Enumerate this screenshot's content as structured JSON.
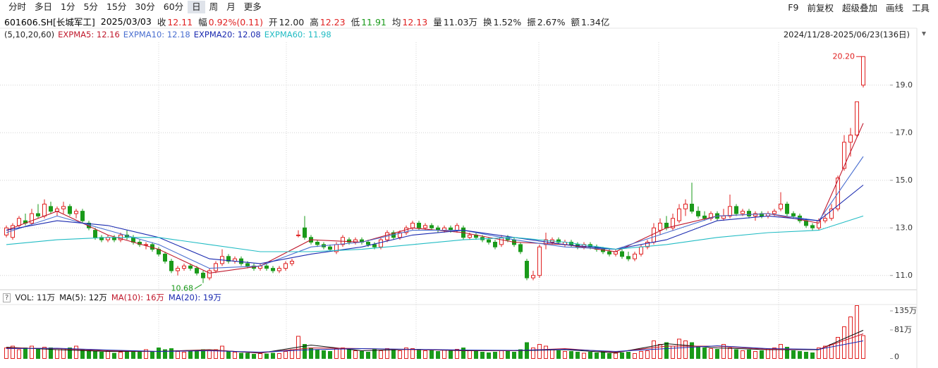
{
  "toolbar": {
    "tabs": [
      "分时",
      "多日",
      "1分",
      "5分",
      "15分",
      "30分",
      "60分",
      "日",
      "周",
      "月",
      "更多"
    ],
    "selected": 7,
    "tools": [
      "F9",
      "前复权",
      "超级叠加",
      "画线",
      "工具"
    ]
  },
  "info": {
    "code": "601606.SH[长城军工]",
    "date": "2025/03/03",
    "items": [
      {
        "label": "收",
        "value": "12.11",
        "color": "#e02020"
      },
      {
        "label": "幅",
        "value": "0.92%(0.11)",
        "color": "#e02020"
      },
      {
        "label": "开",
        "value": "12.00",
        "color": "#222222"
      },
      {
        "label": "高",
        "value": "12.23",
        "color": "#e02020"
      },
      {
        "label": "低",
        "value": "11.91",
        "color": "#1a9a1a"
      },
      {
        "label": "均",
        "value": "12.13",
        "color": "#e02020"
      },
      {
        "label": "量",
        "value": "11.03万",
        "color": "#222222"
      },
      {
        "label": "换",
        "value": "1.52%",
        "color": "#222222"
      },
      {
        "label": "振",
        "value": "2.67%",
        "color": "#222222"
      },
      {
        "label": "额",
        "value": "1.34亿",
        "color": "#222222"
      }
    ]
  },
  "chart_data": {
    "type": "candlestick",
    "params": "(5,10,20,60)",
    "range": "2024/11/28-2025/06/23(136日)",
    "up_color": "#e02020",
    "down_color": "#1a9a1a",
    "ylim": [
      10.4,
      20.8
    ],
    "yticks": [
      {
        "value": 11,
        "label": "11.0"
      },
      {
        "value": 13,
        "label": "13.0"
      },
      {
        "value": 15,
        "label": "15.0"
      },
      {
        "value": 17,
        "label": "17.0"
      },
      {
        "value": 19,
        "label": "19.0"
      }
    ],
    "grid": true,
    "annotations": {
      "max": "20.20",
      "min": "10.68"
    },
    "candles": [
      [
        12.7,
        13.1,
        12.6,
        13.0
      ],
      [
        12.6,
        13.2,
        12.5,
        13.1
      ],
      [
        13.1,
        13.5,
        13.0,
        13.4
      ],
      [
        13.3,
        13.6,
        13.1,
        13.2
      ],
      [
        13.2,
        13.8,
        13.1,
        13.6
      ],
      [
        13.6,
        14.0,
        13.4,
        13.5
      ],
      [
        13.5,
        14.2,
        13.4,
        14.0
      ],
      [
        13.9,
        14.1,
        13.6,
        13.7
      ],
      [
        13.7,
        13.9,
        13.5,
        13.8
      ],
      [
        13.8,
        14.1,
        13.6,
        13.9
      ],
      [
        13.9,
        14.0,
        13.5,
        13.6
      ],
      [
        13.6,
        13.8,
        13.4,
        13.7
      ],
      [
        13.7,
        13.8,
        13.2,
        13.3
      ],
      [
        13.2,
        13.3,
        12.9,
        13.0
      ],
      [
        12.9,
        13.0,
        12.5,
        12.6
      ],
      [
        12.6,
        12.7,
        12.4,
        12.5
      ],
      [
        12.5,
        12.7,
        12.4,
        12.6
      ],
      [
        12.6,
        12.7,
        12.4,
        12.5
      ],
      [
        12.5,
        12.8,
        12.4,
        12.7
      ],
      [
        12.7,
        12.9,
        12.5,
        12.6
      ],
      [
        12.6,
        12.7,
        12.3,
        12.4
      ],
      [
        12.4,
        12.5,
        12.2,
        12.3
      ],
      [
        12.3,
        12.4,
        12.1,
        12.3
      ],
      [
        12.3,
        12.4,
        12.0,
        12.1
      ],
      [
        12.1,
        12.2,
        11.8,
        11.9
      ],
      [
        11.9,
        12.0,
        11.5,
        11.6
      ],
      [
        11.6,
        11.7,
        11.1,
        11.2
      ],
      [
        11.2,
        11.4,
        11.0,
        11.3
      ],
      [
        11.3,
        11.5,
        11.2,
        11.4
      ],
      [
        11.4,
        11.5,
        11.2,
        11.3
      ],
      [
        11.3,
        11.4,
        11.0,
        11.1
      ],
      [
        11.1,
        11.2,
        10.68,
        10.9
      ],
      [
        10.9,
        11.3,
        10.8,
        11.2
      ],
      [
        11.2,
        11.6,
        11.1,
        11.5
      ],
      [
        11.5,
        12.1,
        11.4,
        11.8
      ],
      [
        11.8,
        11.9,
        11.5,
        11.6
      ],
      [
        11.6,
        11.8,
        11.5,
        11.7
      ],
      [
        11.7,
        11.8,
        11.4,
        11.5
      ],
      [
        11.5,
        11.6,
        11.3,
        11.4
      ],
      [
        11.4,
        11.5,
        11.2,
        11.3
      ],
      [
        11.3,
        11.5,
        11.2,
        11.4
      ],
      [
        11.4,
        11.5,
        11.2,
        11.3
      ],
      [
        11.3,
        11.4,
        11.1,
        11.2
      ],
      [
        11.2,
        11.4,
        11.1,
        11.3
      ],
      [
        11.3,
        11.6,
        11.2,
        11.5
      ],
      [
        11.5,
        11.7,
        11.4,
        11.6
      ],
      [
        12.7,
        12.9,
        12.6,
        12.7
      ],
      [
        13.0,
        13.5,
        12.5,
        12.6
      ],
      [
        12.6,
        12.7,
        12.3,
        12.4
      ],
      [
        12.4,
        12.5,
        12.2,
        12.3
      ],
      [
        12.3,
        12.4,
        12.1,
        12.2
      ],
      [
        12.2,
        12.3,
        12.0,
        12.1
      ],
      [
        12.0,
        12.4,
        11.9,
        12.3
      ],
      [
        12.3,
        12.7,
        12.2,
        12.6
      ],
      [
        12.5,
        12.6,
        12.3,
        12.4
      ],
      [
        12.4,
        12.6,
        12.3,
        12.5
      ],
      [
        12.5,
        12.6,
        12.3,
        12.4
      ],
      [
        12.4,
        12.5,
        12.2,
        12.3
      ],
      [
        12.3,
        12.4,
        12.1,
        12.2
      ],
      [
        12.2,
        12.6,
        12.1,
        12.5
      ],
      [
        12.5,
        12.9,
        12.4,
        12.8
      ],
      [
        12.8,
        12.9,
        12.5,
        12.6
      ],
      [
        12.6,
        12.9,
        12.5,
        12.8
      ],
      [
        12.8,
        13.1,
        12.7,
        13.0
      ],
      [
        13.0,
        13.3,
        12.9,
        13.2
      ],
      [
        13.2,
        13.3,
        12.9,
        13.0
      ],
      [
        13.0,
        13.2,
        12.9,
        13.1
      ],
      [
        13.1,
        13.2,
        12.9,
        13.0
      ],
      [
        13.0,
        13.1,
        12.8,
        12.9
      ],
      [
        12.9,
        13.1,
        12.8,
        13.0
      ],
      [
        13.0,
        13.1,
        12.8,
        12.9
      ],
      [
        12.9,
        13.2,
        12.8,
        13.1
      ],
      [
        13.0,
        13.1,
        12.5,
        12.6
      ],
      [
        12.6,
        12.8,
        12.5,
        12.7
      ],
      [
        12.7,
        12.8,
        12.5,
        12.6
      ],
      [
        12.6,
        12.7,
        12.4,
        12.5
      ],
      [
        12.5,
        12.6,
        12.3,
        12.4
      ],
      [
        12.4,
        12.5,
        12.1,
        12.2
      ],
      [
        12.3,
        12.7,
        12.2,
        12.6
      ],
      [
        12.6,
        12.7,
        12.4,
        12.5
      ],
      [
        12.5,
        12.6,
        12.2,
        12.3
      ],
      [
        12.3,
        12.4,
        11.9,
        12.0
      ],
      [
        11.6,
        11.7,
        10.8,
        10.9
      ],
      [
        10.9,
        11.2,
        10.8,
        11.0
      ],
      [
        11.0,
        12.3,
        10.9,
        12.2
      ],
      [
        12.3,
        12.8,
        12.1,
        12.5
      ],
      [
        12.4,
        12.6,
        12.3,
        12.5
      ],
      [
        12.5,
        12.6,
        12.3,
        12.4
      ],
      [
        12.3,
        12.5,
        12.2,
        12.4
      ],
      [
        12.4,
        12.5,
        12.2,
        12.3
      ],
      [
        12.3,
        12.4,
        12.1,
        12.2
      ],
      [
        12.2,
        12.4,
        12.1,
        12.3
      ],
      [
        12.3,
        12.4,
        12.1,
        12.2
      ],
      [
        12.2,
        12.3,
        12.0,
        12.1
      ],
      [
        12.1,
        12.2,
        11.9,
        12.0
      ],
      [
        12.0,
        12.1,
        11.8,
        11.9
      ],
      [
        11.9,
        12.1,
        11.8,
        12.0
      ],
      [
        12.0,
        12.1,
        11.7,
        11.8
      ],
      [
        11.8,
        12.0,
        11.6,
        11.7
      ],
      [
        11.7,
        12.0,
        11.6,
        11.9
      ],
      [
        11.9,
        12.3,
        11.8,
        12.2
      ],
      [
        12.2,
        12.5,
        12.1,
        12.4
      ],
      [
        12.4,
        13.2,
        12.3,
        13.0
      ],
      [
        12.9,
        13.4,
        12.7,
        13.2
      ],
      [
        13.2,
        13.5,
        12.9,
        13.0
      ],
      [
        13.0,
        13.6,
        12.9,
        13.4
      ],
      [
        13.3,
        14.0,
        13.2,
        13.8
      ],
      [
        13.8,
        14.2,
        13.5,
        14.0
      ],
      [
        14.0,
        14.9,
        13.6,
        13.7
      ],
      [
        13.7,
        13.9,
        13.4,
        13.5
      ],
      [
        13.5,
        13.7,
        13.3,
        13.4
      ],
      [
        13.4,
        13.7,
        13.3,
        13.6
      ],
      [
        13.6,
        13.7,
        13.3,
        13.4
      ],
      [
        13.4,
        13.8,
        13.3,
        13.5
      ],
      [
        13.5,
        14.4,
        13.4,
        13.9
      ],
      [
        13.9,
        14.0,
        13.5,
        13.6
      ],
      [
        13.6,
        13.8,
        13.5,
        13.7
      ],
      [
        13.7,
        13.8,
        13.4,
        13.5
      ],
      [
        13.5,
        13.7,
        13.3,
        13.6
      ],
      [
        13.6,
        13.7,
        13.4,
        13.5
      ],
      [
        13.5,
        13.7,
        13.4,
        13.6
      ],
      [
        13.6,
        13.8,
        13.5,
        13.7
      ],
      [
        13.8,
        14.5,
        13.7,
        14.0
      ],
      [
        14.0,
        14.1,
        13.5,
        13.6
      ],
      [
        13.6,
        13.7,
        13.4,
        13.5
      ],
      [
        13.5,
        13.6,
        13.2,
        13.3
      ],
      [
        13.3,
        13.4,
        13.0,
        13.1
      ],
      [
        13.1,
        13.2,
        12.9,
        13.0
      ],
      [
        13.0,
        13.4,
        12.9,
        13.3
      ],
      [
        13.3,
        13.6,
        13.2,
        13.4
      ],
      [
        13.4,
        14.0,
        13.3,
        13.8
      ],
      [
        13.8,
        15.2,
        13.7,
        15.1
      ],
      [
        15.5,
        16.9,
        15.4,
        16.6
      ],
      [
        16.6,
        17.2,
        16.0,
        16.9
      ],
      [
        16.9,
        18.3,
        16.8,
        18.3
      ],
      [
        19.0,
        20.2,
        18.9,
        20.2
      ]
    ],
    "series": [
      {
        "name": "EXPMA5: 12.16",
        "color": "#c0182c",
        "x": [
          0,
          8,
          16,
          24,
          32,
          40,
          48,
          56,
          64,
          72,
          80,
          88,
          96,
          104,
          112,
          120,
          128,
          135
        ],
        "values": [
          12.9,
          13.7,
          12.7,
          12.1,
          11.1,
          11.4,
          12.5,
          12.4,
          13.0,
          12.8,
          12.4,
          12.3,
          12.0,
          13.0,
          13.5,
          13.6,
          13.2,
          17.4
        ]
      },
      {
        "name": "EXPMA10: 12.18",
        "color": "#4a6fd0",
        "x": [
          0,
          8,
          16,
          24,
          32,
          40,
          48,
          56,
          64,
          72,
          80,
          88,
          96,
          104,
          112,
          120,
          128,
          135
        ],
        "values": [
          12.8,
          13.5,
          12.9,
          12.3,
          11.3,
          11.4,
          12.2,
          12.4,
          12.9,
          12.9,
          12.5,
          12.2,
          12.1,
          12.8,
          13.5,
          13.6,
          13.3,
          16.0
        ]
      },
      {
        "name": "EXPMA20: 12.08",
        "color": "#1a2ab0",
        "x": [
          0,
          8,
          16,
          24,
          32,
          40,
          48,
          56,
          64,
          72,
          80,
          88,
          96,
          104,
          112,
          120,
          128,
          135
        ],
        "values": [
          12.9,
          13.3,
          13.1,
          12.6,
          11.7,
          11.5,
          11.9,
          12.2,
          12.7,
          12.9,
          12.6,
          12.3,
          12.1,
          12.5,
          13.3,
          13.5,
          13.3,
          14.8
        ]
      },
      {
        "name": "EXPMA60: 11.98",
        "color": "#22bcc4",
        "x": [
          0,
          8,
          16,
          24,
          32,
          40,
          48,
          56,
          64,
          72,
          80,
          88,
          96,
          104,
          112,
          120,
          128,
          135
        ],
        "values": [
          12.3,
          12.5,
          12.6,
          12.6,
          12.3,
          12.0,
          12.0,
          12.1,
          12.3,
          12.5,
          12.6,
          12.4,
          12.1,
          12.3,
          12.6,
          12.8,
          12.9,
          13.5
        ]
      }
    ],
    "volume": {
      "legend": "VOL: 11万",
      "ylim": [
        0,
        150
      ],
      "yticks": [
        {
          "value": 0,
          "label": "0"
        },
        {
          "value": 81,
          "label": "81万"
        },
        {
          "value": 135,
          "label": "135万"
        }
      ],
      "values": [
        30,
        35,
        25,
        30,
        35,
        28,
        32,
        30,
        25,
        28,
        30,
        35,
        25,
        22,
        20,
        18,
        20,
        15,
        18,
        20,
        22,
        18,
        25,
        20,
        30,
        25,
        28,
        20,
        18,
        22,
        20,
        25,
        22,
        25,
        35,
        20,
        18,
        15,
        15,
        12,
        14,
        13,
        15,
        14,
        20,
        25,
        63,
        40,
        30,
        25,
        22,
        20,
        28,
        30,
        25,
        22,
        20,
        18,
        25,
        22,
        28,
        25,
        22,
        30,
        28,
        26,
        22,
        25,
        20,
        24,
        22,
        26,
        30,
        22,
        20,
        18,
        16,
        18,
        22,
        20,
        18,
        25,
        45,
        30,
        40,
        35,
        25,
        22,
        20,
        20,
        18,
        15,
        18,
        16,
        20,
        14,
        15,
        16,
        18,
        14,
        20,
        22,
        50,
        40,
        45,
        35,
        55,
        50,
        45,
        35,
        30,
        28,
        26,
        40,
        30,
        25,
        22,
        24,
        20,
        22,
        28,
        30,
        40,
        32,
        22,
        20,
        18,
        16,
        30,
        35,
        40,
        60,
        90,
        118,
        150,
        65
      ],
      "series": [
        {
          "name": "MA(5): 12万",
          "color": "#111111",
          "x": [
            0,
            8,
            16,
            24,
            32,
            40,
            48,
            56,
            64,
            72,
            80,
            88,
            96,
            104,
            112,
            120,
            128,
            135
          ],
          "values": [
            32,
            25,
            20,
            20,
            25,
            15,
            38,
            22,
            26,
            22,
            22,
            25,
            16,
            42,
            30,
            25,
            25,
            80
          ]
        },
        {
          "name": "MA(10): 16万",
          "color": "#c0182c",
          "x": [
            0,
            8,
            16,
            24,
            32,
            40,
            48,
            56,
            64,
            72,
            80,
            88,
            96,
            104,
            112,
            120,
            128,
            135
          ],
          "values": [
            30,
            28,
            22,
            20,
            24,
            16,
            30,
            28,
            25,
            23,
            22,
            28,
            18,
            35,
            35,
            26,
            26,
            70
          ]
        },
        {
          "name": "MA(20): 19万",
          "color": "#1a2ab0",
          "x": [
            0,
            8,
            16,
            24,
            32,
            40,
            48,
            56,
            64,
            72,
            80,
            88,
            96,
            104,
            112,
            120,
            128,
            135
          ],
          "values": [
            28,
            29,
            24,
            20,
            22,
            18,
            25,
            28,
            26,
            24,
            23,
            26,
            20,
            28,
            36,
            28,
            26,
            50
          ]
        }
      ]
    }
  }
}
